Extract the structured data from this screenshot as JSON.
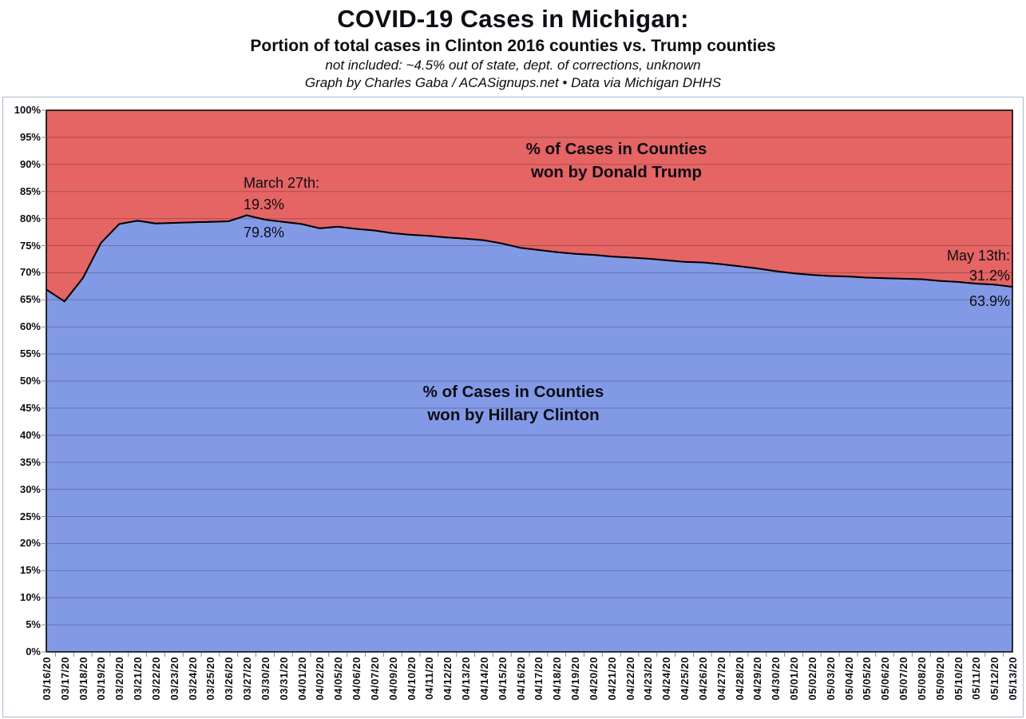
{
  "header": {
    "title": "COVID-19 Cases in Michigan:",
    "subtitle": "Portion of total cases in Clinton 2016 counties vs. Trump counties",
    "note": "not included: ~4.5% out of state, dept. of corrections, unknown",
    "credit": "Graph by Charles Gaba / ACASignups.net  •  Data via Michigan DHHS"
  },
  "chart_data": {
    "type": "area",
    "subtype": "100pct-stacked",
    "title": "COVID-19 Cases in Michigan: Portion of total cases in Clinton 2016 counties vs. Trump counties",
    "xlabel": "",
    "ylabel": "",
    "ylim": [
      0,
      100
    ],
    "ytick_step_pct": 5,
    "y_ticks": [
      "0%",
      "5%",
      "10%",
      "15%",
      "20%",
      "25%",
      "30%",
      "35%",
      "40%",
      "45%",
      "50%",
      "55%",
      "60%",
      "65%",
      "70%",
      "75%",
      "80%",
      "85%",
      "90%",
      "95%",
      "100%"
    ],
    "grid": "horizontal-only",
    "legend": "in-plot text labels",
    "categories": [
      "03/16/20",
      "03/17/20",
      "03/18/20",
      "03/19/20",
      "03/20/20",
      "03/21/20",
      "03/22/20",
      "03/23/20",
      "03/24/20",
      "03/25/20",
      "03/26/20",
      "03/27/20",
      "03/30/20",
      "03/31/20",
      "04/01/20",
      "04/02/20",
      "04/05/20",
      "04/06/20",
      "04/07/20",
      "04/09/20",
      "04/10/20",
      "04/11/20",
      "04/12/20",
      "04/13/20",
      "04/14/20",
      "04/15/20",
      "04/16/20",
      "04/17/20",
      "04/18/20",
      "04/19/20",
      "04/20/20",
      "04/21/20",
      "04/22/20",
      "04/23/20",
      "04/24/20",
      "04/25/20",
      "04/26/20",
      "04/27/20",
      "04/28/20",
      "04/29/20",
      "04/30/20",
      "05/01/20",
      "05/02/20",
      "05/03/20",
      "05/04/20",
      "05/05/20",
      "05/06/20",
      "05/07/20",
      "05/08/20",
      "05/09/20",
      "05/10/20",
      "05/11/20",
      "05/12/20",
      "05/13/20"
    ],
    "series": [
      {
        "name": "% of Cases in Counties won by Hillary Clinton",
        "color": "#8299E6",
        "position": "bottom",
        "values": [
          66.9,
          64.7,
          69.0,
          75.5,
          79.0,
          79.6,
          79.1,
          79.2,
          79.3,
          79.4,
          79.5,
          80.6,
          79.8,
          79.4,
          79.0,
          78.2,
          78.5,
          78.1,
          77.8,
          77.3,
          77.0,
          76.8,
          76.5,
          76.3,
          76.0,
          75.4,
          74.6,
          74.2,
          73.8,
          73.5,
          73.3,
          73.0,
          72.8,
          72.6,
          72.3,
          72.0,
          71.9,
          71.6,
          71.2,
          70.8,
          70.3,
          69.9,
          69.6,
          69.4,
          69.3,
          69.1,
          69.0,
          68.9,
          68.8,
          68.5,
          68.3,
          68.0,
          67.8,
          67.4
        ]
      },
      {
        "name": "% of Cases in Counties won by Donald Trump",
        "color": "#E56464",
        "position": "top",
        "values": [
          33.1,
          35.3,
          31.0,
          24.5,
          21.0,
          20.4,
          20.9,
          20.8,
          20.7,
          20.6,
          20.5,
          19.4,
          20.2,
          20.6,
          21.0,
          21.8,
          21.5,
          21.9,
          22.2,
          22.7,
          23.0,
          23.2,
          23.5,
          23.7,
          24.0,
          24.6,
          25.4,
          25.8,
          26.2,
          26.5,
          26.7,
          27.0,
          27.2,
          27.4,
          27.7,
          28.0,
          28.1,
          28.4,
          28.8,
          29.2,
          29.7,
          30.1,
          30.4,
          30.6,
          30.7,
          30.9,
          31.0,
          31.1,
          31.2,
          31.5,
          31.7,
          32.0,
          32.2,
          32.6
        ]
      }
    ],
    "boundary_line_color": "#000000",
    "area_labels": {
      "trump_line1": "% of Cases in Counties",
      "trump_line2": "won by Donald Trump",
      "clinton_line1": "% of Cases in Counties",
      "clinton_line2": "won by Hillary Clinton"
    },
    "annotations": {
      "march": {
        "title": "March 27th:",
        "trump_value": "19.3%",
        "clinton_value": "79.8%"
      },
      "may": {
        "title": "May 13th:",
        "trump_value": "31.2%",
        "clinton_value": "63.9%"
      }
    }
  }
}
